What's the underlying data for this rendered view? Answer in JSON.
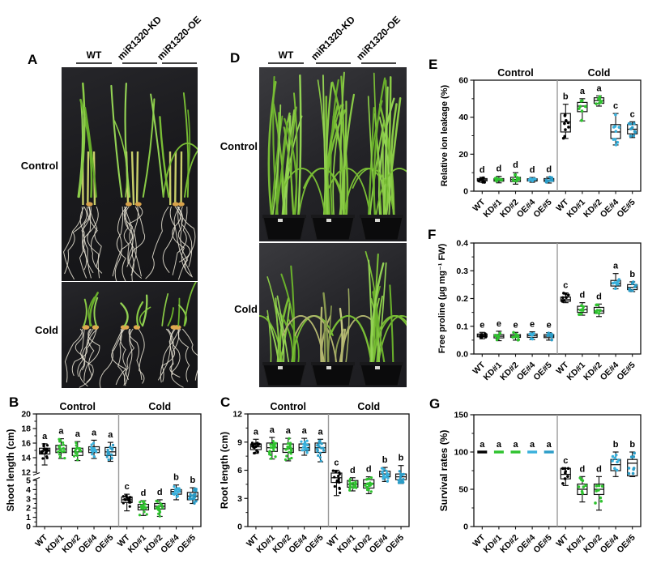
{
  "labels": {
    "A": "A",
    "B": "B",
    "C": "C",
    "D": "D",
    "E": "E",
    "F": "F",
    "G": "G"
  },
  "photo_groups": [
    "WT",
    "miR1320-KD",
    "miR1320-OE"
  ],
  "row_labels": {
    "control": "Control",
    "cold": "Cold"
  },
  "palette": {
    "wt": "#000000",
    "kd": "#2ec22e",
    "oe4": "#38b0dc",
    "oe5": "#2b9cc7"
  },
  "chart_data": [
    {
      "panel": "B",
      "type": "box",
      "ylabel": "Shoot length (cm)",
      "group_headers": [
        "Control",
        "Cold"
      ],
      "categories": [
        "WT",
        "KD#1",
        "KD#2",
        "OE#4",
        "OE#5"
      ],
      "colors": [
        "#000000",
        "#2ec22e",
        "#2ec22e",
        "#38b0dc",
        "#2b9cc7"
      ],
      "axis": {
        "broken": true,
        "lower": [
          0,
          5
        ],
        "lower_ticks": [
          0,
          1,
          2,
          3,
          4,
          5
        ],
        "lower_minor": 0.5,
        "upper": [
          12,
          20
        ],
        "upper_ticks": [
          12,
          14,
          16,
          18,
          20
        ],
        "upper_minor": 1,
        "decimals": 0
      },
      "n_points": 18,
      "groups": [
        {
          "name": "Control",
          "letters": [
            "a",
            "a",
            "a",
            "a",
            "a"
          ],
          "boxes": [
            [
              13.0,
              14.5,
              14.9,
              15.3,
              15.9
            ],
            [
              13.9,
              14.7,
              15.2,
              15.7,
              16.6
            ],
            [
              13.6,
              14.3,
              14.8,
              15.3,
              16.2
            ],
            [
              13.9,
              14.7,
              15.1,
              15.5,
              16.4
            ],
            [
              13.5,
              14.3,
              14.8,
              15.4,
              16.1
            ]
          ]
        },
        {
          "name": "Cold",
          "letters": [
            "c",
            "d",
            "d",
            "b",
            "b"
          ],
          "boxes": [
            [
              1.7,
              2.6,
              2.9,
              3.2,
              3.5
            ],
            [
              1.2,
              1.8,
              2.1,
              2.4,
              2.8
            ],
            [
              1.1,
              1.9,
              2.2,
              2.5,
              2.9
            ],
            [
              2.9,
              3.5,
              3.8,
              4.0,
              4.5
            ],
            [
              2.5,
              2.9,
              3.3,
              3.7,
              4.2
            ]
          ]
        }
      ]
    },
    {
      "panel": "C",
      "type": "box",
      "ylabel": "Root length (cm)",
      "group_headers": [
        "Control",
        "Cold"
      ],
      "categories": [
        "WT",
        "KD#1",
        "KD#2",
        "OE#4",
        "OE#5"
      ],
      "colors": [
        "#000000",
        "#2ec22e",
        "#2ec22e",
        "#38b0dc",
        "#2b9cc7"
      ],
      "axis": {
        "lim": [
          0,
          12
        ],
        "ticks": [
          0,
          3,
          6,
          9,
          12
        ],
        "minor": 1.5,
        "decimals": 0
      },
      "n_points": 18,
      "groups": [
        {
          "name": "Control",
          "letters": [
            "a",
            "a",
            "a",
            "a",
            "a"
          ],
          "boxes": [
            [
              7.8,
              8.2,
              8.5,
              8.8,
              9.3
            ],
            [
              7.2,
              8.0,
              8.4,
              8.9,
              9.5
            ],
            [
              7.0,
              7.9,
              8.3,
              8.8,
              9.4
            ],
            [
              7.6,
              8.1,
              8.4,
              8.8,
              9.4
            ],
            [
              6.9,
              7.9,
              8.4,
              8.9,
              9.3
            ]
          ]
        },
        {
          "name": "Cold",
          "letters": [
            "c",
            "d",
            "d",
            "b",
            "b"
          ],
          "boxes": [
            [
              3.3,
              4.7,
              5.2,
              5.7,
              6.0
            ],
            [
              3.8,
              4.2,
              4.5,
              4.9,
              5.2
            ],
            [
              3.5,
              4.1,
              4.6,
              5.0,
              5.3
            ],
            [
              4.8,
              5.3,
              5.6,
              5.9,
              6.3
            ],
            [
              4.6,
              5.0,
              5.3,
              5.6,
              6.5
            ]
          ]
        }
      ]
    },
    {
      "panel": "E",
      "type": "box",
      "ylabel": "Relative ion leakage (%)",
      "group_headers": [
        "Control",
        "Cold"
      ],
      "categories": [
        "WT",
        "KD#1",
        "KD#2",
        "OE#4",
        "OE#5"
      ],
      "colors": [
        "#000000",
        "#2ec22e",
        "#2ec22e",
        "#38b0dc",
        "#2b9cc7"
      ],
      "axis": {
        "lim": [
          0,
          60
        ],
        "ticks": [
          0,
          20,
          40,
          60
        ],
        "minor": 10,
        "decimals": 0
      },
      "n_points": 9,
      "groups": [
        {
          "name": "Control",
          "letters": [
            "d",
            "d",
            "d",
            "d",
            "d"
          ],
          "boxes": [
            [
              4.8,
              5.6,
              6.2,
              6.8,
              7.5
            ],
            [
              4.5,
              5.4,
              6.0,
              6.8,
              8.0
            ],
            [
              3.8,
              5.2,
              6.3,
              7.5,
              10.0
            ],
            [
              4.8,
              5.5,
              6.1,
              6.7,
              7.4
            ],
            [
              4.4,
              5.3,
              6.0,
              6.8,
              7.6
            ]
          ]
        },
        {
          "name": "Cold",
          "letters": [
            "b",
            "a",
            "a",
            "c",
            "c"
          ],
          "boxes": [
            [
              28.5,
              32,
              37.5,
              42,
              47
            ],
            [
              38,
              43,
              46,
              48,
              50
            ],
            [
              46,
              47.5,
              49,
              50.5,
              51.5
            ],
            [
              25,
              28.5,
              32,
              36,
              42
            ],
            [
              29,
              31,
              33.5,
              36,
              37.5
            ]
          ]
        }
      ]
    },
    {
      "panel": "F",
      "type": "box",
      "ylabel": "Free proline (µg mg⁻¹ FW)",
      "group_headers": [],
      "categories": [
        "WT",
        "KD#1",
        "KD#2",
        "OE#4",
        "OE#5"
      ],
      "colors": [
        "#000000",
        "#2ec22e",
        "#2ec22e",
        "#38b0dc",
        "#2b9cc7"
      ],
      "axis": {
        "lim": [
          0,
          0.4
        ],
        "ticks": [
          0,
          0.1,
          0.2,
          0.3,
          0.4
        ],
        "minor": 0.05,
        "decimals": 1
      },
      "n_points": 8,
      "groups": [
        {
          "name": "Control",
          "letters": [
            "e",
            "e",
            "e",
            "e",
            "e"
          ],
          "boxes": [
            [
              0.055,
              0.062,
              0.067,
              0.072,
              0.078
            ],
            [
              0.048,
              0.058,
              0.064,
              0.07,
              0.082
            ],
            [
              0.05,
              0.06,
              0.065,
              0.07,
              0.078
            ],
            [
              0.052,
              0.06,
              0.066,
              0.072,
              0.08
            ],
            [
              0.05,
              0.059,
              0.064,
              0.07,
              0.077
            ]
          ]
        },
        {
          "name": "Cold",
          "letters": [
            "c",
            "d",
            "d",
            "a",
            "b"
          ],
          "boxes": [
            [
              0.185,
              0.19,
              0.196,
              0.205,
              0.22
            ],
            [
              0.14,
              0.15,
              0.16,
              0.172,
              0.185
            ],
            [
              0.135,
              0.147,
              0.155,
              0.168,
              0.18
            ],
            [
              0.235,
              0.245,
              0.255,
              0.265,
              0.29
            ],
            [
              0.225,
              0.232,
              0.24,
              0.25,
              0.26
            ]
          ]
        }
      ]
    },
    {
      "panel": "G",
      "type": "box",
      "ylabel": "Survival rates (%)",
      "group_headers": [],
      "categories": [
        "WT",
        "KD#1",
        "KD#2",
        "OE#4",
        "OE#5"
      ],
      "colors": [
        "#000000",
        "#2ec22e",
        "#2ec22e",
        "#38b0dc",
        "#2b9cc7"
      ],
      "axis": {
        "lim": [
          0,
          150
        ],
        "ticks": [
          0,
          50,
          100,
          150
        ],
        "minor": 25,
        "decimals": 0
      },
      "n_points": 8,
      "groups": [
        {
          "name": "Control",
          "letters": [
            "a",
            "a",
            "a",
            "a",
            "a"
          ],
          "boxes": [
            [
              100,
              100,
              100,
              100,
              100
            ],
            [
              100,
              100,
              100,
              100,
              100
            ],
            [
              100,
              100,
              100,
              100,
              100
            ],
            [
              100,
              100,
              100,
              100,
              100
            ],
            [
              100,
              100,
              100,
              100,
              100
            ]
          ]
        },
        {
          "name": "Cold",
          "letters": [
            "c",
            "d",
            "d",
            "b",
            "b"
          ],
          "boxes": [
            [
              55,
              64,
              70,
              78,
              78
            ],
            [
              33,
              43,
              50,
              57,
              67
            ],
            [
              22,
              43,
              50,
              57,
              67
            ],
            [
              67,
              75,
              83,
              90,
              100
            ],
            [
              67,
              68,
              85,
              90,
              100
            ]
          ]
        }
      ]
    }
  ]
}
